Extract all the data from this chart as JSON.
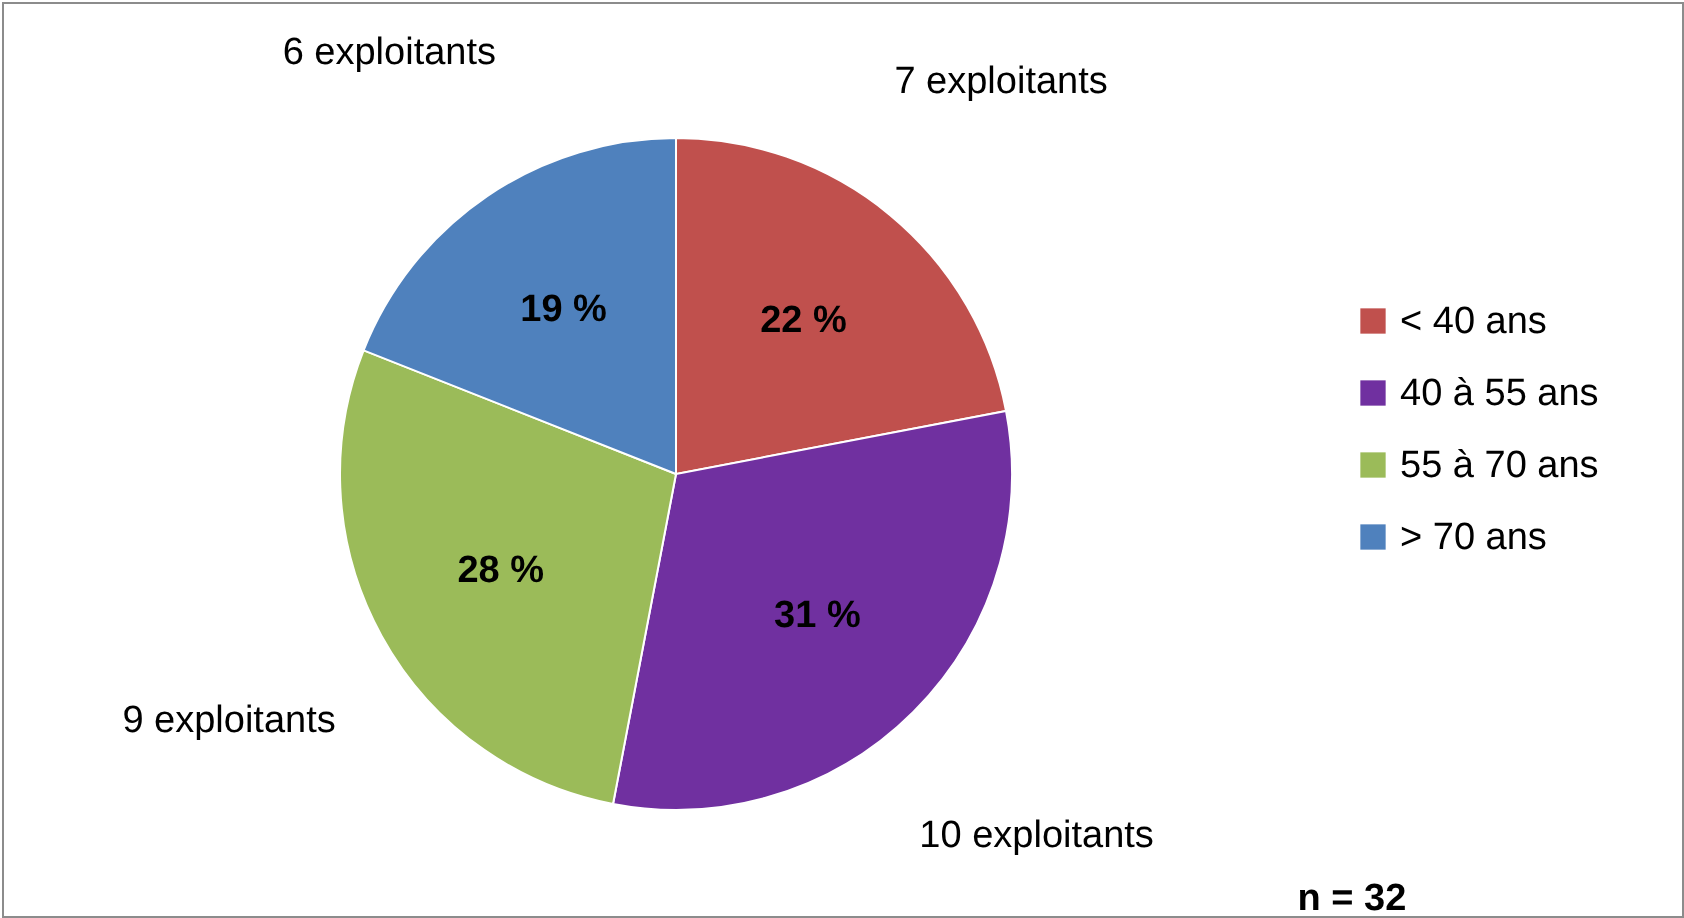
{
  "chart_data": {
    "type": "pie",
    "categories": [
      "< 40 ans",
      "40 à 55 ans",
      "55 à 70 ans",
      "> 70 ans"
    ],
    "values": [
      22,
      31,
      28,
      19
    ],
    "value_labels": [
      "22 %",
      "31 %",
      "28 %",
      "19 %"
    ],
    "colors": [
      "#c0504d",
      "#7030a0",
      "#9bbb59",
      "#4f81bd"
    ],
    "annotations": [
      {
        "text": "7 exploitants",
        "x": "< 40 ans"
      },
      {
        "text": "10 exploitants",
        "x": "40 à 55 ans"
      },
      {
        "text": "9 exploitants",
        "x": "55 à 70 ans"
      },
      {
        "text": "6 exploitants",
        "x": "> 70 ans"
      },
      "n = 32"
    ],
    "legend": "right"
  }
}
